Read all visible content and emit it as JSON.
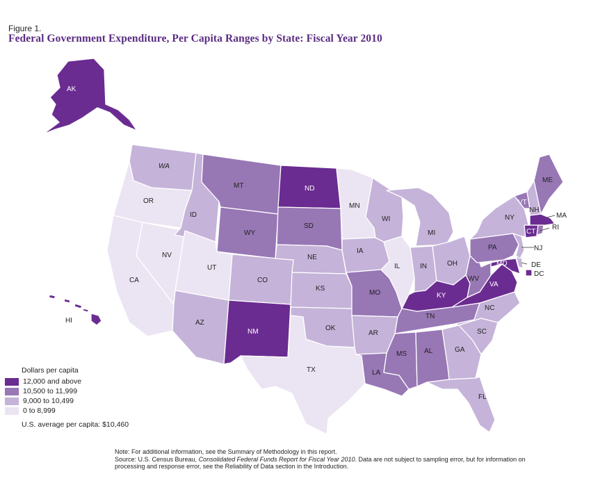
{
  "figure_label": "Figure 1.",
  "title": "Federal Government Expenditure, Per Capita Ranges by State:  Fiscal Year 2010",
  "colors": {
    "tier1": "#6b2c91",
    "tier2": "#9877b5",
    "tier3": "#c5b3d9",
    "tier4": "#ebe4f2",
    "title": "#5b2c82"
  },
  "legend": {
    "title": "Dollars per capita",
    "items": [
      {
        "label": "12,000 and above",
        "tier": "tier1"
      },
      {
        "label": "10,500 to 11,999",
        "tier": "tier2"
      },
      {
        "label": "9,000 to 10,499",
        "tier": "tier3"
      },
      {
        "label": "0 to 8,999",
        "tier": "tier4"
      }
    ]
  },
  "us_average": "U.S. average per capita: $10,460",
  "states": {
    "AK": "tier1",
    "HI": "tier1",
    "WA": "tier3",
    "OR": "tier4",
    "CA": "tier4",
    "NV": "tier4",
    "ID": "tier3",
    "MT": "tier2",
    "WY": "tier2",
    "UT": "tier4",
    "AZ": "tier3",
    "CO": "tier3",
    "NM": "tier1",
    "ND": "tier1",
    "SD": "tier2",
    "NE": "tier3",
    "KS": "tier3",
    "OK": "tier3",
    "TX": "tier4",
    "MN": "tier4",
    "IA": "tier3",
    "MO": "tier2",
    "AR": "tier3",
    "LA": "tier2",
    "WI": "tier3",
    "IL": "tier4",
    "MI": "tier3",
    "IN": "tier3",
    "OH": "tier3",
    "KY": "tier1",
    "TN": "tier2",
    "MS": "tier2",
    "AL": "tier2",
    "GA": "tier3",
    "FL": "tier3",
    "SC": "tier3",
    "NC": "tier3",
    "VA": "tier1",
    "WV": "tier2",
    "PA": "tier2",
    "NY": "tier3",
    "NJ": "tier3",
    "DE": "tier3",
    "MD": "tier1",
    "DC": "tier1",
    "CT": "tier1",
    "RI": "tier2",
    "MA": "tier1",
    "VT": "tier2",
    "NH": "tier3",
    "ME": "tier2"
  },
  "notes": {
    "line1": "Note: For additional information, see the Summary of Methodology in this report.",
    "line2_prefix": "Source: U.S. Census Bureau, ",
    "line2_italic": "Consolidated Federal Funds Report for Fiscal Year 2010",
    "line2_suffix": ". Data are not subject to sampling error, but for information on",
    "line3": "processing and response error, see the Reliability of Data section in the Introduction."
  }
}
